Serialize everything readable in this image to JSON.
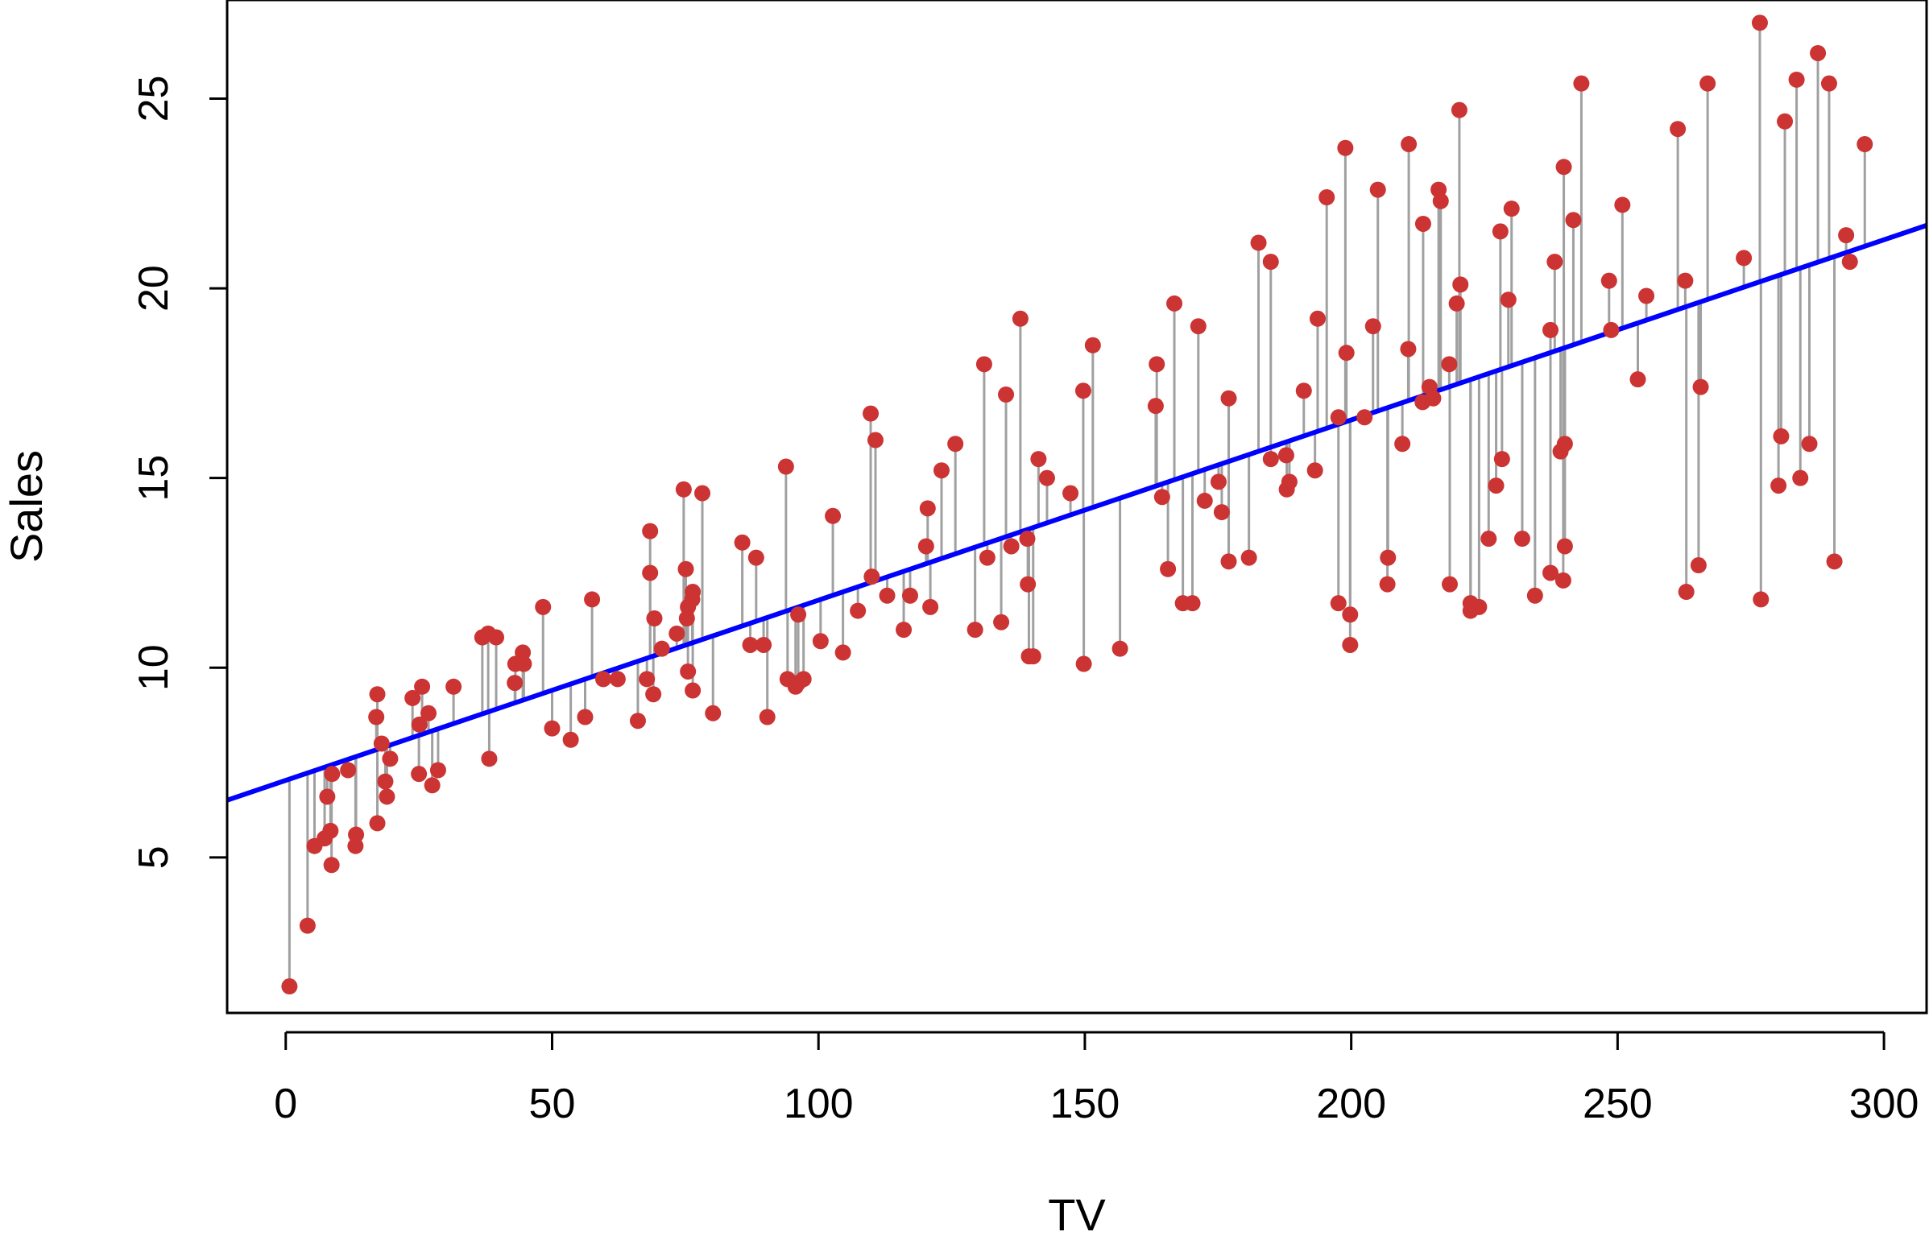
{
  "chart_data": {
    "type": "scatter",
    "title": "",
    "xlabel": "TV",
    "ylabel": "Sales",
    "xlim": [
      -11,
      308
    ],
    "ylim": [
      0.9,
      27.6
    ],
    "xticks": [
      0,
      50,
      100,
      150,
      200,
      250,
      300
    ],
    "yticks": [
      5,
      10,
      15,
      20,
      25
    ],
    "xtick_labels": [
      "0",
      "50",
      "100",
      "150",
      "200",
      "250",
      "300"
    ],
    "ytick_labels": [
      "5",
      "10",
      "15",
      "20",
      "25"
    ],
    "grid": false,
    "legend": "none",
    "regression_line": {
      "intercept": 7.03,
      "slope": 0.0475,
      "color": "#0000ff"
    },
    "residual_color": "#a0a0a0",
    "point_color": "#cc3333",
    "points": [
      [
        0.7,
        1.6
      ],
      [
        4.1,
        3.2
      ],
      [
        5.4,
        5.3
      ],
      [
        7.3,
        5.5
      ],
      [
        7.8,
        6.6
      ],
      [
        8.4,
        5.7
      ],
      [
        8.6,
        4.8
      ],
      [
        8.7,
        7.2
      ],
      [
        11.7,
        7.3
      ],
      [
        13.1,
        5.3
      ],
      [
        13.2,
        5.6
      ],
      [
        17.2,
        9.3
      ],
      [
        17.0,
        8.7
      ],
      [
        17.2,
        5.9
      ],
      [
        18.0,
        8.0
      ],
      [
        18.7,
        7.0
      ],
      [
        19.0,
        6.6
      ],
      [
        19.6,
        7.6
      ],
      [
        23.8,
        9.2
      ],
      [
        25.0,
        7.2
      ],
      [
        25.1,
        8.5
      ],
      [
        25.6,
        9.5
      ],
      [
        26.8,
        8.8
      ],
      [
        27.5,
        6.9
      ],
      [
        28.6,
        7.3
      ],
      [
        31.5,
        9.5
      ],
      [
        36.9,
        10.8
      ],
      [
        38.0,
        10.9
      ],
      [
        38.2,
        7.6
      ],
      [
        39.5,
        10.8
      ],
      [
        43.0,
        9.6
      ],
      [
        43.1,
        10.1
      ],
      [
        44.5,
        10.4
      ],
      [
        44.7,
        10.1
      ],
      [
        48.3,
        11.6
      ],
      [
        50.0,
        8.4
      ],
      [
        53.5,
        8.1
      ],
      [
        56.2,
        8.7
      ],
      [
        57.5,
        11.8
      ],
      [
        59.6,
        9.7
      ],
      [
        62.3,
        9.7
      ],
      [
        66.1,
        8.6
      ],
      [
        67.8,
        9.7
      ],
      [
        68.4,
        12.5
      ],
      [
        68.4,
        13.6
      ],
      [
        69.0,
        9.3
      ],
      [
        69.2,
        11.3
      ],
      [
        70.6,
        10.5
      ],
      [
        73.4,
        10.9
      ],
      [
        74.7,
        14.7
      ],
      [
        75.1,
        12.6
      ],
      [
        75.3,
        11.3
      ],
      [
        75.5,
        11.6
      ],
      [
        75.5,
        9.9
      ],
      [
        76.3,
        11.8
      ],
      [
        76.4,
        12.0
      ],
      [
        76.4,
        9.4
      ],
      [
        78.2,
        14.6
      ],
      [
        80.2,
        8.8
      ],
      [
        85.7,
        13.3
      ],
      [
        87.2,
        10.6
      ],
      [
        88.3,
        12.9
      ],
      [
        89.7,
        10.6
      ],
      [
        90.4,
        8.7
      ],
      [
        93.9,
        15.3
      ],
      [
        94.2,
        9.7
      ],
      [
        95.7,
        9.5
      ],
      [
        96.2,
        11.4
      ],
      [
        96.2,
        9.6
      ],
      [
        97.2,
        9.7
      ],
      [
        100.4,
        10.7
      ],
      [
        102.7,
        14.0
      ],
      [
        104.6,
        10.4
      ],
      [
        107.4,
        11.5
      ],
      [
        109.8,
        16.7
      ],
      [
        110.0,
        12.4
      ],
      [
        110.7,
        16.0
      ],
      [
        112.9,
        11.9
      ],
      [
        116.0,
        11.0
      ],
      [
        117.2,
        11.9
      ],
      [
        120.2,
        13.2
      ],
      [
        120.5,
        14.2
      ],
      [
        121.0,
        11.6
      ],
      [
        123.1,
        15.2
      ],
      [
        125.7,
        15.9
      ],
      [
        129.4,
        11.0
      ],
      [
        131.1,
        18.0
      ],
      [
        131.7,
        12.9
      ],
      [
        134.3,
        11.2
      ],
      [
        135.2,
        17.2
      ],
      [
        136.2,
        13.2
      ],
      [
        137.9,
        19.2
      ],
      [
        139.2,
        13.4
      ],
      [
        139.3,
        12.2
      ],
      [
        139.5,
        10.3
      ],
      [
        140.3,
        10.3
      ],
      [
        141.3,
        15.5
      ],
      [
        142.9,
        15.0
      ],
      [
        147.3,
        14.6
      ],
      [
        149.7,
        17.3
      ],
      [
        149.8,
        10.1
      ],
      [
        151.5,
        18.5
      ],
      [
        156.6,
        10.5
      ],
      [
        163.3,
        16.9
      ],
      [
        163.5,
        18.0
      ],
      [
        164.5,
        14.5
      ],
      [
        165.6,
        12.6
      ],
      [
        166.8,
        19.6
      ],
      [
        168.4,
        11.7
      ],
      [
        170.2,
        11.7
      ],
      [
        171.3,
        19.0
      ],
      [
        172.5,
        14.4
      ],
      [
        175.1,
        14.9
      ],
      [
        175.7,
        14.1
      ],
      [
        177.0,
        12.8
      ],
      [
        177.0,
        17.1
      ],
      [
        180.8,
        12.9
      ],
      [
        182.6,
        21.2
      ],
      [
        184.9,
        20.7
      ],
      [
        184.9,
        15.5
      ],
      [
        187.8,
        15.6
      ],
      [
        187.9,
        14.7
      ],
      [
        188.4,
        14.9
      ],
      [
        191.1,
        17.3
      ],
      [
        193.2,
        15.2
      ],
      [
        193.7,
        19.2
      ],
      [
        195.4,
        22.4
      ],
      [
        197.6,
        11.7
      ],
      [
        197.6,
        16.6
      ],
      [
        198.9,
        23.7
      ],
      [
        199.1,
        18.3
      ],
      [
        199.8,
        11.4
      ],
      [
        199.8,
        10.6
      ],
      [
        202.5,
        16.6
      ],
      [
        204.1,
        19.0
      ],
      [
        205.0,
        22.6
      ],
      [
        206.8,
        12.2
      ],
      [
        206.9,
        12.9
      ],
      [
        209.6,
        15.9
      ],
      [
        210.7,
        18.4
      ],
      [
        210.8,
        23.8
      ],
      [
        213.4,
        17.0
      ],
      [
        213.5,
        21.7
      ],
      [
        214.7,
        17.4
      ],
      [
        215.4,
        17.1
      ],
      [
        216.4,
        22.6
      ],
      [
        216.8,
        22.3
      ],
      [
        218.4,
        18.0
      ],
      [
        218.5,
        12.2
      ],
      [
        219.8,
        19.6
      ],
      [
        220.3,
        24.7
      ],
      [
        220.5,
        20.1
      ],
      [
        222.4,
        11.7
      ],
      [
        222.4,
        11.5
      ],
      [
        224.0,
        11.6
      ],
      [
        225.8,
        13.4
      ],
      [
        227.2,
        14.8
      ],
      [
        228.0,
        21.5
      ],
      [
        228.3,
        15.5
      ],
      [
        229.5,
        19.7
      ],
      [
        230.1,
        22.1
      ],
      [
        232.1,
        13.4
      ],
      [
        234.5,
        11.9
      ],
      [
        237.4,
        12.5
      ],
      [
        237.4,
        18.9
      ],
      [
        238.2,
        20.7
      ],
      [
        239.3,
        15.7
      ],
      [
        239.8,
        12.3
      ],
      [
        240.1,
        13.2
      ],
      [
        240.1,
        15.9
      ],
      [
        239.9,
        23.2
      ],
      [
        241.7,
        21.8
      ],
      [
        243.2,
        25.4
      ],
      [
        248.4,
        20.2
      ],
      [
        248.8,
        18.9
      ],
      [
        250.9,
        22.2
      ],
      [
        253.8,
        17.6
      ],
      [
        255.4,
        19.8
      ],
      [
        261.3,
        24.2
      ],
      [
        262.7,
        20.2
      ],
      [
        262.9,
        12.0
      ],
      [
        265.2,
        12.7
      ],
      [
        265.6,
        17.4
      ],
      [
        266.9,
        25.4
      ],
      [
        273.7,
        20.8
      ],
      [
        276.7,
        27.0
      ],
      [
        276.9,
        11.8
      ],
      [
        280.2,
        14.8
      ],
      [
        280.7,
        16.1
      ],
      [
        281.4,
        24.4
      ],
      [
        283.6,
        25.5
      ],
      [
        284.3,
        15.0
      ],
      [
        286.0,
        15.9
      ],
      [
        287.6,
        26.2
      ],
      [
        289.7,
        25.4
      ],
      [
        290.7,
        12.8
      ],
      [
        293.6,
        20.7
      ],
      [
        292.9,
        21.4
      ],
      [
        296.4,
        23.8
      ]
    ]
  }
}
